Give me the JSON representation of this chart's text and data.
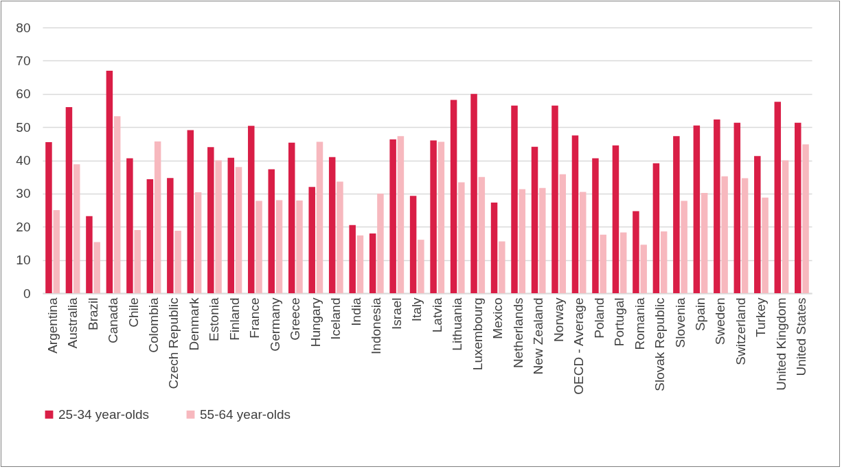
{
  "chart_data": {
    "type": "bar",
    "categories": [
      "Argentina",
      "Australia",
      "Brazil",
      "Canada",
      "Chile",
      "Colombia",
      "Czech Republic",
      "Denmark",
      "Estonia",
      "Finland",
      "France",
      "Germany",
      "Greece",
      "Hungary",
      "Iceland",
      "India",
      "Indonesia",
      "Israel",
      "Italy",
      "Latvia",
      "Lithuania",
      "Luxembourg",
      "Mexico",
      "Netherlands",
      "New Zealand",
      "Norway",
      "OECD - Average",
      "Poland",
      "Portugal",
      "Romania",
      "Slovak Republic",
      "Slovenia",
      "Spain",
      "Sweden",
      "Switzerland",
      "Turkey",
      "United Kingdom",
      "United States"
    ],
    "series": [
      {
        "name": "25-34 year-olds",
        "color": "#d91e46",
        "values": [
          45.5,
          56,
          23.2,
          67,
          40.6,
          34.3,
          34.7,
          49.1,
          44,
          40.8,
          50.4,
          37.3,
          45.3,
          32,
          41,
          20.5,
          18,
          46.3,
          29.3,
          46,
          58.2,
          60,
          27.3,
          56.5,
          44.1,
          56.5,
          47.5,
          40.6,
          44.5,
          24.7,
          39.1,
          47.3,
          50.5,
          52.3,
          51.3,
          41.3,
          57.6,
          51.3
        ]
      },
      {
        "name": "55-64 year-olds",
        "color": "#f7b8be",
        "values": [
          25,
          38.8,
          15.4,
          53.3,
          19,
          45.7,
          18.8,
          30.4,
          40,
          38,
          27.8,
          28,
          27.9,
          45.6,
          33.6,
          17.4,
          30,
          47.3,
          16.1,
          45.6,
          33.4,
          35,
          15.6,
          31.3,
          31.7,
          35.8,
          30.5,
          17.6,
          18.3,
          14.6,
          18.6,
          27.8,
          30.2,
          35.2,
          34.6,
          28.8,
          40,
          44.8
        ]
      }
    ],
    "ylim": [
      0,
      80
    ],
    "yticks": [
      0,
      10,
      20,
      30,
      40,
      50,
      60,
      70,
      80
    ],
    "grid": "y",
    "legend": "bottom"
  }
}
